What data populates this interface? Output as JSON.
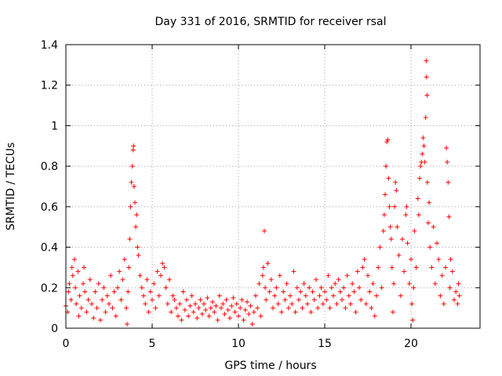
{
  "chart_data": {
    "type": "scatter",
    "title": "Day 331 of 2016, SRMTID for receiver rsal",
    "xlabel": "GPS time / hours",
    "ylabel": "SRMTID / TECUs",
    "xlim": [
      0,
      24
    ],
    "ylim": [
      0,
      1.4
    ],
    "x_ticks": [
      0,
      5,
      10,
      15,
      20
    ],
    "x_tick_labels": [
      "0",
      "5",
      "10",
      "15",
      "20"
    ],
    "y_ticks": [
      0,
      0.2,
      0.4,
      0.6,
      0.8,
      1.0,
      1.2,
      1.4
    ],
    "y_tick_labels": [
      "0",
      "0.2",
      "0.4",
      "0.6",
      "0.8",
      "1",
      "1.2",
      "1.4"
    ],
    "grid": true,
    "marker": "plus",
    "series": [
      {
        "name": "SRMTID",
        "color": "#ff0000",
        "points": [
          [
            0.0,
            0.11
          ],
          [
            0.1,
            0.08
          ],
          [
            0.15,
            0.18
          ],
          [
            0.2,
            0.22
          ],
          [
            0.3,
            0.14
          ],
          [
            0.35,
            0.3
          ],
          [
            0.4,
            0.26
          ],
          [
            0.5,
            0.34
          ],
          [
            0.55,
            0.2
          ],
          [
            0.6,
            0.12
          ],
          [
            0.7,
            0.28
          ],
          [
            0.75,
            0.06
          ],
          [
            0.8,
            0.16
          ],
          [
            0.9,
            0.1
          ],
          [
            1.0,
            0.22
          ],
          [
            1.05,
            0.3
          ],
          [
            1.1,
            0.18
          ],
          [
            1.2,
            0.08
          ],
          [
            1.3,
            0.14
          ],
          [
            1.4,
            0.24
          ],
          [
            1.5,
            0.12
          ],
          [
            1.6,
            0.05
          ],
          [
            1.7,
            0.18
          ],
          [
            1.8,
            0.1
          ],
          [
            1.9,
            0.22
          ],
          [
            2.0,
            0.04
          ],
          [
            2.1,
            0.14
          ],
          [
            2.2,
            0.2
          ],
          [
            2.3,
            0.08
          ],
          [
            2.4,
            0.16
          ],
          [
            2.5,
            0.12
          ],
          [
            2.6,
            0.26
          ],
          [
            2.7,
            0.1
          ],
          [
            2.8,
            0.18
          ],
          [
            2.9,
            0.06
          ],
          [
            3.0,
            0.2
          ],
          [
            3.1,
            0.28
          ],
          [
            3.2,
            0.14
          ],
          [
            3.3,
            0.24
          ],
          [
            3.4,
            0.34
          ],
          [
            3.5,
            0.1
          ],
          [
            3.55,
            0.02
          ],
          [
            3.6,
            0.18
          ],
          [
            3.65,
            0.3
          ],
          [
            3.7,
            0.44
          ],
          [
            3.75,
            0.6
          ],
          [
            3.8,
            0.72
          ],
          [
            3.85,
            0.8
          ],
          [
            3.9,
            0.88
          ],
          [
            3.92,
            0.9
          ],
          [
            3.95,
            0.7
          ],
          [
            4.0,
            0.62
          ],
          [
            4.05,
            0.5
          ],
          [
            4.1,
            0.56
          ],
          [
            4.15,
            0.4
          ],
          [
            4.2,
            0.36
          ],
          [
            4.3,
            0.26
          ],
          [
            4.4,
            0.2
          ],
          [
            4.5,
            0.16
          ],
          [
            4.6,
            0.12
          ],
          [
            4.7,
            0.24
          ],
          [
            4.8,
            0.08
          ],
          [
            4.9,
            0.18
          ],
          [
            5.0,
            0.14
          ],
          [
            5.1,
            0.22
          ],
          [
            5.2,
            0.1
          ],
          [
            5.3,
            0.28
          ],
          [
            5.4,
            0.16
          ],
          [
            5.5,
            0.26
          ],
          [
            5.6,
            0.32
          ],
          [
            5.7,
            0.3
          ],
          [
            5.8,
            0.2
          ],
          [
            5.9,
            0.12
          ],
          [
            6.0,
            0.24
          ],
          [
            6.1,
            0.08
          ],
          [
            6.2,
            0.16
          ],
          [
            6.3,
            0.14
          ],
          [
            6.4,
            0.1
          ],
          [
            6.5,
            0.06
          ],
          [
            6.6,
            0.12
          ],
          [
            6.7,
            0.04
          ],
          [
            6.8,
            0.18
          ],
          [
            6.9,
            0.09
          ],
          [
            7.0,
            0.14
          ],
          [
            7.1,
            0.06
          ],
          [
            7.2,
            0.11
          ],
          [
            7.3,
            0.16
          ],
          [
            7.4,
            0.08
          ],
          [
            7.5,
            0.12
          ],
          [
            7.6,
            0.05
          ],
          [
            7.7,
            0.1
          ],
          [
            7.8,
            0.14
          ],
          [
            7.9,
            0.07
          ],
          [
            8.0,
            0.12
          ],
          [
            8.1,
            0.09
          ],
          [
            8.2,
            0.15
          ],
          [
            8.3,
            0.06
          ],
          [
            8.4,
            0.1
          ],
          [
            8.5,
            0.13
          ],
          [
            8.6,
            0.08
          ],
          [
            8.7,
            0.11
          ],
          [
            8.8,
            0.04
          ],
          [
            8.9,
            0.16
          ],
          [
            9.0,
            0.1
          ],
          [
            9.1,
            0.12
          ],
          [
            9.2,
            0.07
          ],
          [
            9.3,
            0.14
          ],
          [
            9.4,
            0.09
          ],
          [
            9.5,
            0.05
          ],
          [
            9.6,
            0.11
          ],
          [
            9.7,
            0.15
          ],
          [
            9.8,
            0.08
          ],
          [
            9.9,
            0.12
          ],
          [
            10.0,
            0.06
          ],
          [
            10.1,
            0.1
          ],
          [
            10.2,
            0.14
          ],
          [
            10.3,
            0.04
          ],
          [
            10.4,
            0.09
          ],
          [
            10.5,
            0.13
          ],
          [
            10.6,
            0.07
          ],
          [
            10.7,
            0.11
          ],
          [
            10.8,
            0.02
          ],
          [
            10.9,
            0.08
          ],
          [
            11.0,
            0.16
          ],
          [
            11.1,
            0.1
          ],
          [
            11.2,
            0.22
          ],
          [
            11.3,
            0.06
          ],
          [
            11.4,
            0.26
          ],
          [
            11.45,
            0.3
          ],
          [
            11.5,
            0.48
          ],
          [
            11.55,
            0.2
          ],
          [
            11.6,
            0.14
          ],
          [
            11.7,
            0.32
          ],
          [
            11.8,
            0.18
          ],
          [
            11.9,
            0.24
          ],
          [
            12.0,
            0.1
          ],
          [
            12.1,
            0.16
          ],
          [
            12.2,
            0.2
          ],
          [
            12.3,
            0.12
          ],
          [
            12.4,
            0.26
          ],
          [
            12.5,
            0.08
          ],
          [
            12.6,
            0.18
          ],
          [
            12.7,
            0.14
          ],
          [
            12.8,
            0.22
          ],
          [
            12.9,
            0.1
          ],
          [
            13.0,
            0.16
          ],
          [
            13.1,
            0.12
          ],
          [
            13.2,
            0.28
          ],
          [
            13.3,
            0.08
          ],
          [
            13.4,
            0.2
          ],
          [
            13.5,
            0.14
          ],
          [
            13.6,
            0.18
          ],
          [
            13.7,
            0.1
          ],
          [
            13.8,
            0.22
          ],
          [
            13.9,
            0.16
          ],
          [
            14.0,
            0.12
          ],
          [
            14.1,
            0.2
          ],
          [
            14.2,
            0.08
          ],
          [
            14.3,
            0.18
          ],
          [
            14.4,
            0.14
          ],
          [
            14.5,
            0.24
          ],
          [
            14.6,
            0.1
          ],
          [
            14.7,
            0.16
          ],
          [
            14.8,
            0.2
          ],
          [
            14.9,
            0.12
          ],
          [
            15.0,
            0.18
          ],
          [
            15.1,
            0.14
          ],
          [
            15.2,
            0.26
          ],
          [
            15.3,
            0.1
          ],
          [
            15.4,
            0.2
          ],
          [
            15.5,
            0.16
          ],
          [
            15.6,
            0.22
          ],
          [
            15.7,
            0.12
          ],
          [
            15.8,
            0.24
          ],
          [
            15.9,
            0.18
          ],
          [
            16.0,
            0.14
          ],
          [
            16.1,
            0.2
          ],
          [
            16.2,
            0.1
          ],
          [
            16.3,
            0.26
          ],
          [
            16.4,
            0.16
          ],
          [
            16.5,
            0.12
          ],
          [
            16.6,
            0.22
          ],
          [
            16.7,
            0.18
          ],
          [
            16.8,
            0.08
          ],
          [
            16.9,
            0.28
          ],
          [
            17.0,
            0.2
          ],
          [
            17.1,
            0.14
          ],
          [
            17.2,
            0.3
          ],
          [
            17.3,
            0.34
          ],
          [
            17.4,
            0.12
          ],
          [
            17.5,
            0.26
          ],
          [
            17.6,
            0.18
          ],
          [
            17.7,
            0.1
          ],
          [
            17.8,
            0.22
          ],
          [
            17.9,
            0.06
          ],
          [
            18.0,
            0.16
          ],
          [
            18.1,
            0.3
          ],
          [
            18.2,
            0.4
          ],
          [
            18.3,
            0.2
          ],
          [
            18.4,
            0.48
          ],
          [
            18.45,
            0.56
          ],
          [
            18.5,
            0.66
          ],
          [
            18.55,
            0.8
          ],
          [
            18.6,
            0.92
          ],
          [
            18.65,
            0.93
          ],
          [
            18.7,
            0.74
          ],
          [
            18.75,
            0.6
          ],
          [
            18.8,
            0.5
          ],
          [
            18.85,
            0.44
          ],
          [
            18.9,
            0.3
          ],
          [
            18.95,
            0.08
          ],
          [
            19.0,
            0.22
          ],
          [
            19.05,
            0.6
          ],
          [
            19.1,
            0.72
          ],
          [
            19.15,
            0.68
          ],
          [
            19.2,
            0.5
          ],
          [
            19.3,
            0.36
          ],
          [
            19.4,
            0.16
          ],
          [
            19.5,
            0.44
          ],
          [
            19.6,
            0.28
          ],
          [
            19.7,
            0.56
          ],
          [
            19.75,
            0.6
          ],
          [
            19.8,
            0.42
          ],
          [
            19.9,
            0.22
          ],
          [
            20.0,
            0.34
          ],
          [
            20.05,
            0.12
          ],
          [
            20.1,
            0.04
          ],
          [
            20.15,
            0.2
          ],
          [
            20.2,
            0.48
          ],
          [
            20.3,
            0.3
          ],
          [
            20.4,
            0.64
          ],
          [
            20.45,
            0.56
          ],
          [
            20.5,
            0.74
          ],
          [
            20.55,
            0.8
          ],
          [
            20.6,
            0.82
          ],
          [
            20.65,
            0.86
          ],
          [
            20.7,
            0.94
          ],
          [
            20.75,
            0.9
          ],
          [
            20.8,
            0.82
          ],
          [
            20.85,
            1.04
          ],
          [
            20.88,
            1.32
          ],
          [
            20.9,
            1.24
          ],
          [
            20.93,
            1.15
          ],
          [
            20.95,
            0.72
          ],
          [
            21.0,
            0.52
          ],
          [
            21.05,
            0.62
          ],
          [
            21.1,
            0.4
          ],
          [
            21.2,
            0.3
          ],
          [
            21.3,
            0.5
          ],
          [
            21.4,
            0.22
          ],
          [
            21.5,
            0.42
          ],
          [
            21.6,
            0.34
          ],
          [
            21.7,
            0.16
          ],
          [
            21.8,
            0.26
          ],
          [
            21.9,
            0.12
          ],
          [
            22.0,
            0.3
          ],
          [
            22.05,
            0.89
          ],
          [
            22.1,
            0.82
          ],
          [
            22.15,
            0.72
          ],
          [
            22.2,
            0.55
          ],
          [
            22.25,
            0.2
          ],
          [
            22.3,
            0.34
          ],
          [
            22.4,
            0.28
          ],
          [
            22.5,
            0.14
          ],
          [
            22.6,
            0.18
          ],
          [
            22.7,
            0.12
          ],
          [
            22.75,
            0.22
          ],
          [
            22.8,
            0.16
          ]
        ]
      }
    ]
  }
}
